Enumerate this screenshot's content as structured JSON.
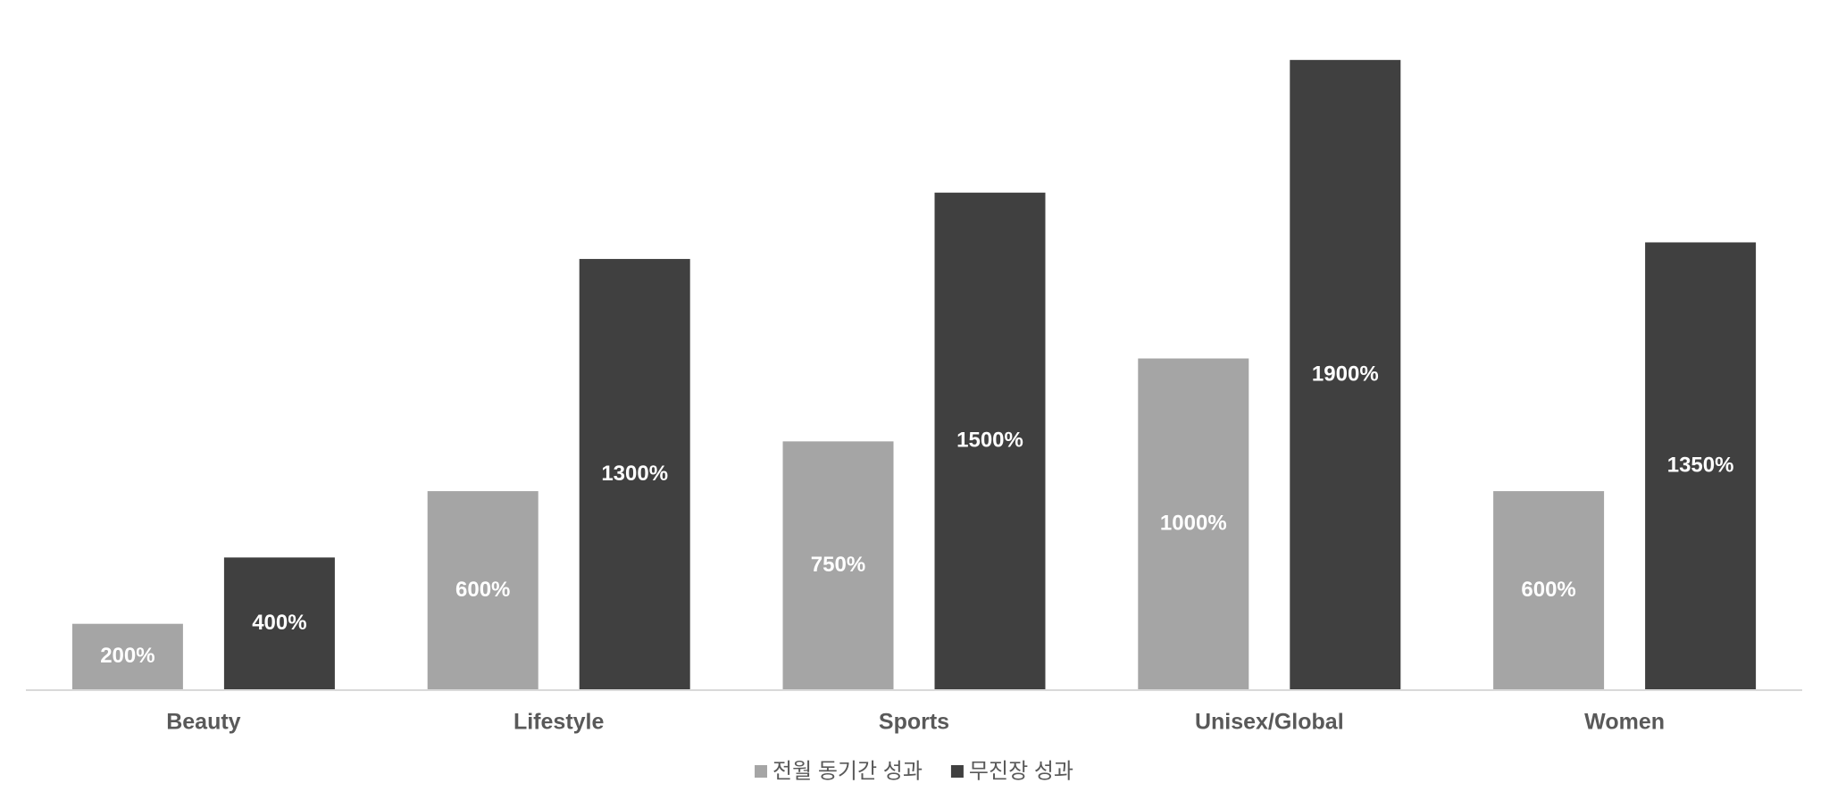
{
  "chart_data": {
    "type": "bar",
    "categories": [
      "Beauty",
      "Lifestyle",
      "Sports",
      "Unisex/Global",
      "Women"
    ],
    "series": [
      {
        "name": "전월 동기간 성과",
        "color": "#a5a5a5",
        "values": [
          200,
          600,
          750,
          1000,
          600
        ],
        "value_labels": [
          "200%",
          "600%",
          "750%",
          "1000%",
          "600%"
        ]
      },
      {
        "name": "무진장 성과",
        "color": "#404040",
        "values": [
          400,
          1300,
          1500,
          1900,
          1350
        ],
        "value_labels": [
          "400%",
          "1300%",
          "1500%",
          "1900%",
          "1350%"
        ]
      }
    ],
    "ylim": [
      0,
      2000
    ],
    "legend": "bottom"
  }
}
